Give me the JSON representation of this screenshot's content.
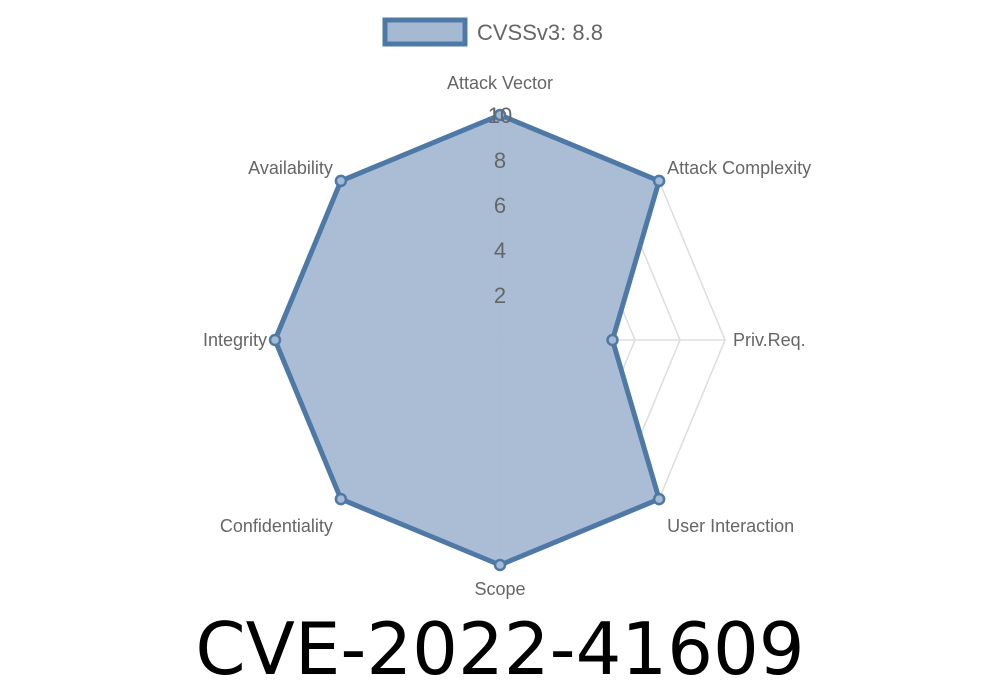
{
  "chart_data": {
    "type": "radar",
    "axes": [
      "Attack Vector",
      "Attack Complexity",
      "Priv.Req.",
      "User Interaction",
      "Scope",
      "Confidentiality",
      "Integrity",
      "Availability"
    ],
    "series": [
      {
        "name": "CVSSv3: 8.8",
        "values": [
          10,
          10,
          5,
          10,
          10,
          10,
          10,
          10
        ]
      }
    ],
    "rlim": [
      0,
      10
    ],
    "ticks": [
      "2",
      "4",
      "6",
      "8",
      "10"
    ],
    "tick_values": [
      2,
      4,
      6,
      8,
      10
    ],
    "grid": true,
    "legend": "top",
    "colors": {
      "stroke": "#4e79a7",
      "fill": "#a5b9d3",
      "grid": "#dddddd"
    }
  },
  "title": "CVE-2022-41609"
}
